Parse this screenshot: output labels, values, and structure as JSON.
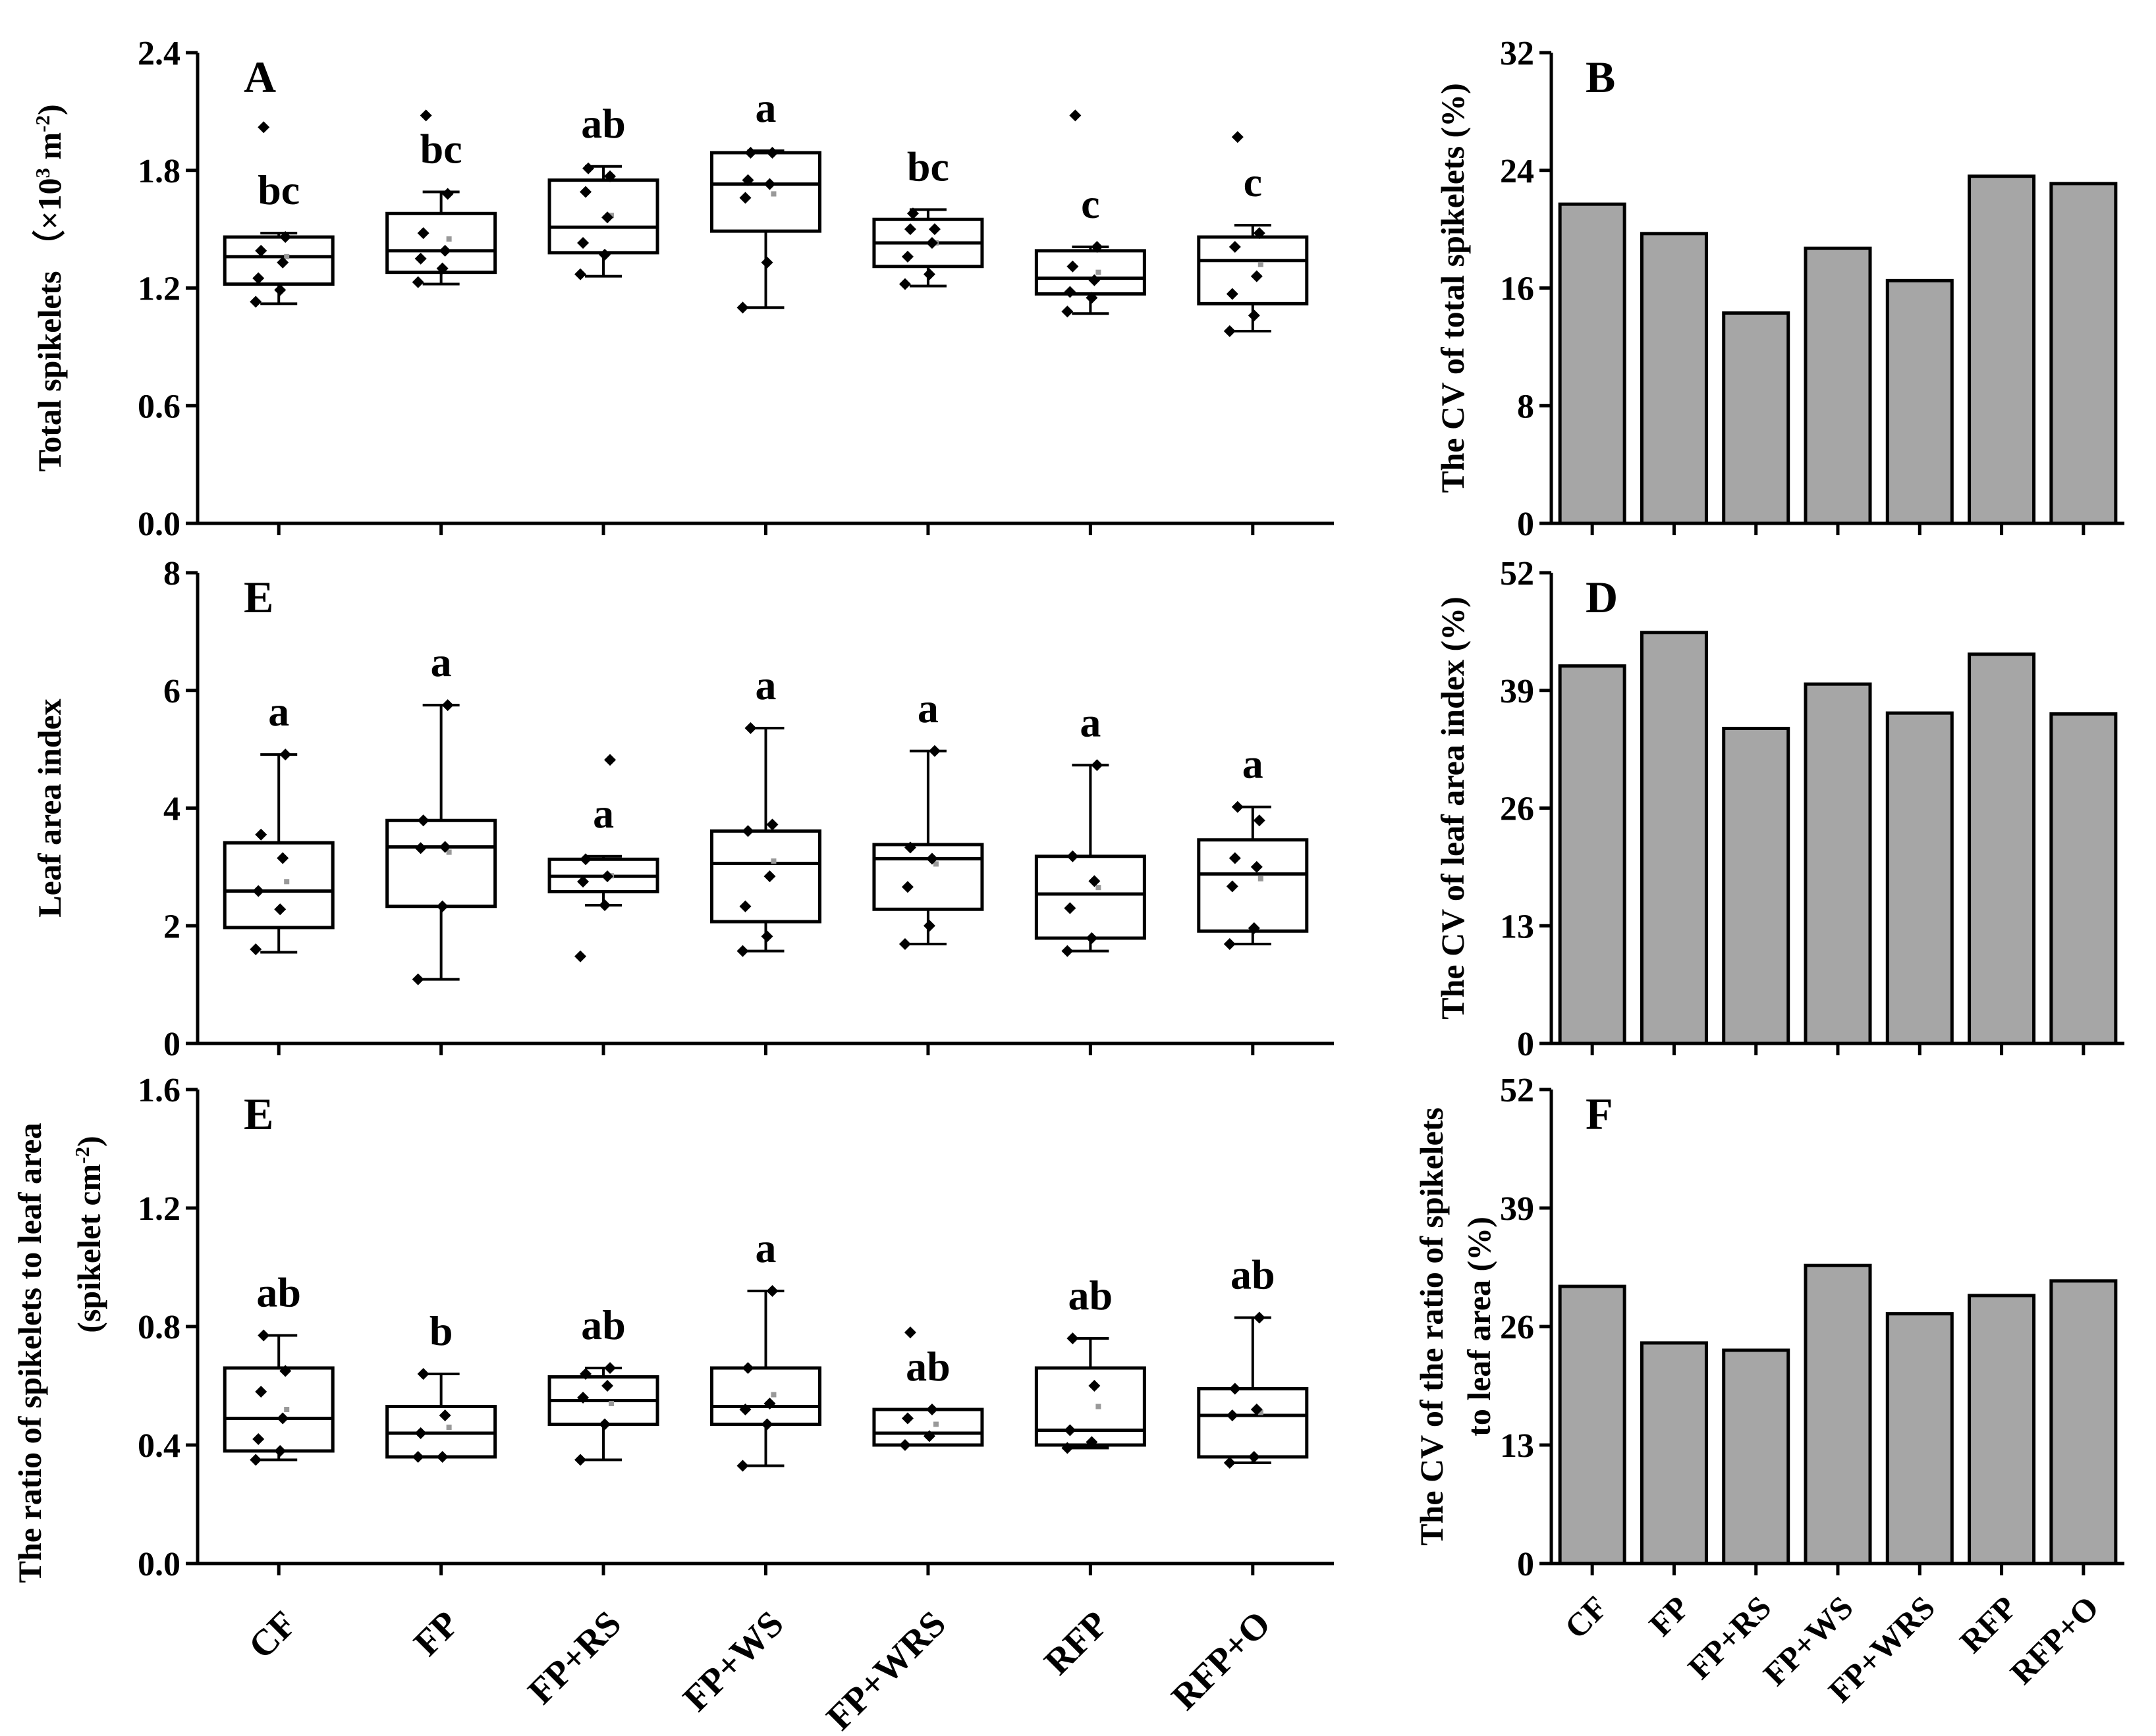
{
  "categories": [
    "CF",
    "FP",
    "FP+RS",
    "FP+WS",
    "FP+WRS",
    "RFP",
    "RFP+O"
  ],
  "colors": {
    "bar_fill": "#a6a6a6",
    "stroke": "#000000",
    "mean_marker": "#999999"
  },
  "chart_data": [
    {
      "id": "A",
      "type": "boxplot",
      "panel_label": "A",
      "ylabel_parts": [
        "Total spikelets （×10",
        "3",
        " m",
        "-2",
        ")"
      ],
      "ylim": [
        0,
        2.4
      ],
      "ticks": [
        "0.0",
        "0.6",
        "1.2",
        "1.8",
        "2.4"
      ],
      "boxes": [
        {
          "category": "CF",
          "whisker_low": 1.12,
          "q1": 1.22,
          "median": 1.36,
          "q3": 1.46,
          "whisker_high": 1.48,
          "mean": 1.36,
          "letter": "bc"
        },
        {
          "category": "FP",
          "whisker_low": 1.22,
          "q1": 1.28,
          "median": 1.39,
          "q3": 1.58,
          "whisker_high": 1.69,
          "mean": 1.45,
          "letter": "bc"
        },
        {
          "category": "FP+RS",
          "whisker_low": 1.26,
          "q1": 1.38,
          "median": 1.51,
          "q3": 1.75,
          "whisker_high": 1.82,
          "mean": 1.57,
          "letter": "ab"
        },
        {
          "category": "FP+WS",
          "whisker_low": 1.1,
          "q1": 1.49,
          "median": 1.73,
          "q3": 1.89,
          "whisker_high": 1.9,
          "mean": 1.68,
          "letter": "a"
        },
        {
          "category": "FP+WRS",
          "whisker_low": 1.21,
          "q1": 1.31,
          "median": 1.43,
          "q3": 1.55,
          "whisker_high": 1.6,
          "mean": 1.43,
          "letter": "bc"
        },
        {
          "category": "RFP",
          "whisker_low": 1.07,
          "q1": 1.17,
          "median": 1.25,
          "q3": 1.39,
          "whisker_high": 1.41,
          "mean": 1.28,
          "letter": "c"
        },
        {
          "category": "RFP+O",
          "whisker_low": 0.98,
          "q1": 1.12,
          "median": 1.34,
          "q3": 1.46,
          "whisker_high": 1.52,
          "mean": 1.32,
          "letter": "c"
        }
      ],
      "points": [
        [
          1.13,
          1.19,
          1.25,
          1.33,
          1.39,
          1.46,
          2.02
        ],
        [
          1.23,
          1.3,
          1.35,
          1.39,
          1.48,
          1.68,
          2.08
        ],
        [
          1.27,
          1.37,
          1.43,
          1.56,
          1.69,
          1.77,
          1.81
        ],
        [
          1.1,
          1.33,
          1.66,
          1.73,
          1.75,
          1.89,
          1.89
        ],
        [
          1.22,
          1.27,
          1.36,
          1.43,
          1.5,
          1.5,
          1.58
        ],
        [
          1.08,
          1.15,
          1.18,
          1.24,
          1.31,
          1.41,
          2.08
        ],
        [
          0.98,
          1.06,
          1.17,
          1.26,
          1.41,
          1.48,
          1.97
        ]
      ]
    },
    {
      "id": "B",
      "type": "bar",
      "panel_label": "B",
      "ylabel": "The CV of total spikelets (%)",
      "ylim": [
        0,
        32
      ],
      "ticks": [
        "0",
        "8",
        "16",
        "24",
        "32"
      ],
      "values": [
        21.7,
        19.7,
        14.3,
        18.7,
        16.5,
        23.6,
        23.1
      ]
    },
    {
      "id": "E1",
      "type": "boxplot",
      "panel_label": "E",
      "ylabel": "Leaf area index",
      "ylim": [
        0,
        8
      ],
      "ticks": [
        "0",
        "2",
        "4",
        "6",
        "8"
      ],
      "boxes": [
        {
          "category": "CF",
          "whisker_low": 1.55,
          "q1": 1.97,
          "median": 2.59,
          "q3": 3.41,
          "whisker_high": 4.91,
          "mean": 2.75,
          "letter": "a"
        },
        {
          "category": "FP",
          "whisker_low": 1.09,
          "q1": 2.33,
          "median": 3.34,
          "q3": 3.79,
          "whisker_high": 5.75,
          "mean": 3.25,
          "letter": "a"
        },
        {
          "category": "FP+RS",
          "whisker_low": 2.35,
          "q1": 2.58,
          "median": 2.84,
          "q3": 3.13,
          "whisker_high": 3.18,
          "mean": 2.85,
          "letter": "a"
        },
        {
          "category": "FP+WS",
          "whisker_low": 1.57,
          "q1": 2.07,
          "median": 3.06,
          "q3": 3.61,
          "whisker_high": 5.36,
          "mean": 3.1,
          "letter": "a"
        },
        {
          "category": "FP+WRS",
          "whisker_low": 1.69,
          "q1": 2.28,
          "median": 3.14,
          "q3": 3.38,
          "whisker_high": 4.97,
          "mean": 3.05,
          "letter": "a"
        },
        {
          "category": "RFP",
          "whisker_low": 1.57,
          "q1": 1.79,
          "median": 2.54,
          "q3": 3.18,
          "whisker_high": 4.73,
          "mean": 2.65,
          "letter": "a"
        },
        {
          "category": "RFP+O",
          "whisker_low": 1.69,
          "q1": 1.91,
          "median": 2.88,
          "q3": 3.46,
          "whisker_high": 4.02,
          "mean": 2.8,
          "letter": "a"
        }
      ],
      "points": [
        [
          1.6,
          2.28,
          2.59,
          3.15,
          3.55,
          4.91
        ],
        [
          1.09,
          2.33,
          3.32,
          3.34,
          3.79,
          5.75
        ],
        [
          1.48,
          2.35,
          2.75,
          2.84,
          3.13,
          4.82
        ],
        [
          1.57,
          1.82,
          2.33,
          2.84,
          3.61,
          3.72,
          5.36
        ],
        [
          1.69,
          2.0,
          2.66,
          3.14,
          3.33,
          4.97
        ],
        [
          1.57,
          1.79,
          2.3,
          2.76,
          3.18,
          4.73
        ],
        [
          1.69,
          1.96,
          2.67,
          3.0,
          3.15,
          3.79,
          4.02
        ]
      ]
    },
    {
      "id": "D",
      "type": "bar",
      "panel_label": "D",
      "ylabel": "The CV of leaf area index (%)",
      "ylim": [
        0,
        52
      ],
      "ticks": [
        "0",
        "13",
        "26",
        "39",
        "52"
      ],
      "values": [
        41.7,
        45.4,
        34.8,
        39.7,
        36.5,
        43.0,
        36.4
      ]
    },
    {
      "id": "E2",
      "type": "boxplot",
      "panel_label": "E",
      "ylabel_lines": [
        "The ratio of spikelets to leaf area",
        "(spikelet cm",
        "-2",
        ")"
      ],
      "ylim": [
        0,
        1.6
      ],
      "ticks": [
        "0.0",
        "0.4",
        "0.8",
        "1.2",
        "1.6"
      ],
      "boxes": [
        {
          "category": "CF",
          "whisker_low": 0.35,
          "q1": 0.38,
          "median": 0.49,
          "q3": 0.66,
          "whisker_high": 0.77,
          "mean": 0.52,
          "letter": "ab"
        },
        {
          "category": "FP",
          "whisker_low": 0.36,
          "q1": 0.36,
          "median": 0.44,
          "q3": 0.53,
          "whisker_high": 0.64,
          "mean": 0.46,
          "letter": "b"
        },
        {
          "category": "FP+RS",
          "whisker_low": 0.35,
          "q1": 0.47,
          "median": 0.55,
          "q3": 0.63,
          "whisker_high": 0.66,
          "mean": 0.54,
          "letter": "ab"
        },
        {
          "category": "FP+WS",
          "whisker_low": 0.33,
          "q1": 0.47,
          "median": 0.53,
          "q3": 0.66,
          "whisker_high": 0.92,
          "mean": 0.57,
          "letter": "a"
        },
        {
          "category": "FP+WRS",
          "whisker_low": 0.4,
          "q1": 0.4,
          "median": 0.44,
          "q3": 0.52,
          "whisker_high": 0.52,
          "mean": 0.47,
          "letter": "ab"
        },
        {
          "category": "RFP",
          "whisker_low": 0.39,
          "q1": 0.4,
          "median": 0.45,
          "q3": 0.66,
          "whisker_high": 0.76,
          "mean": 0.53,
          "letter": "ab"
        },
        {
          "category": "RFP+O",
          "whisker_low": 0.34,
          "q1": 0.36,
          "median": 0.5,
          "q3": 0.59,
          "whisker_high": 0.83,
          "mean": 0.51,
          "letter": "ab"
        }
      ],
      "points": [
        [
          0.35,
          0.38,
          0.42,
          0.49,
          0.58,
          0.65,
          0.77
        ],
        [
          0.36,
          0.36,
          0.44,
          0.5,
          0.64
        ],
        [
          0.35,
          0.47,
          0.56,
          0.6,
          0.64,
          0.66
        ],
        [
          0.33,
          0.47,
          0.52,
          0.54,
          0.66,
          0.92
        ],
        [
          0.4,
          0.43,
          0.49,
          0.52,
          0.78
        ],
        [
          0.39,
          0.41,
          0.45,
          0.6,
          0.76
        ],
        [
          0.34,
          0.36,
          0.5,
          0.52,
          0.59,
          0.83
        ]
      ]
    },
    {
      "id": "F",
      "type": "bar",
      "panel_label": "F",
      "ylabel_lines": [
        "The CV of the ratio of spikelets",
        "to leaf area (%)"
      ],
      "ylim": [
        0,
        52
      ],
      "ticks": [
        "0",
        "13",
        "26",
        "39",
        "52"
      ],
      "values": [
        30.4,
        24.2,
        23.4,
        32.7,
        27.4,
        29.4,
        31.0
      ]
    }
  ]
}
